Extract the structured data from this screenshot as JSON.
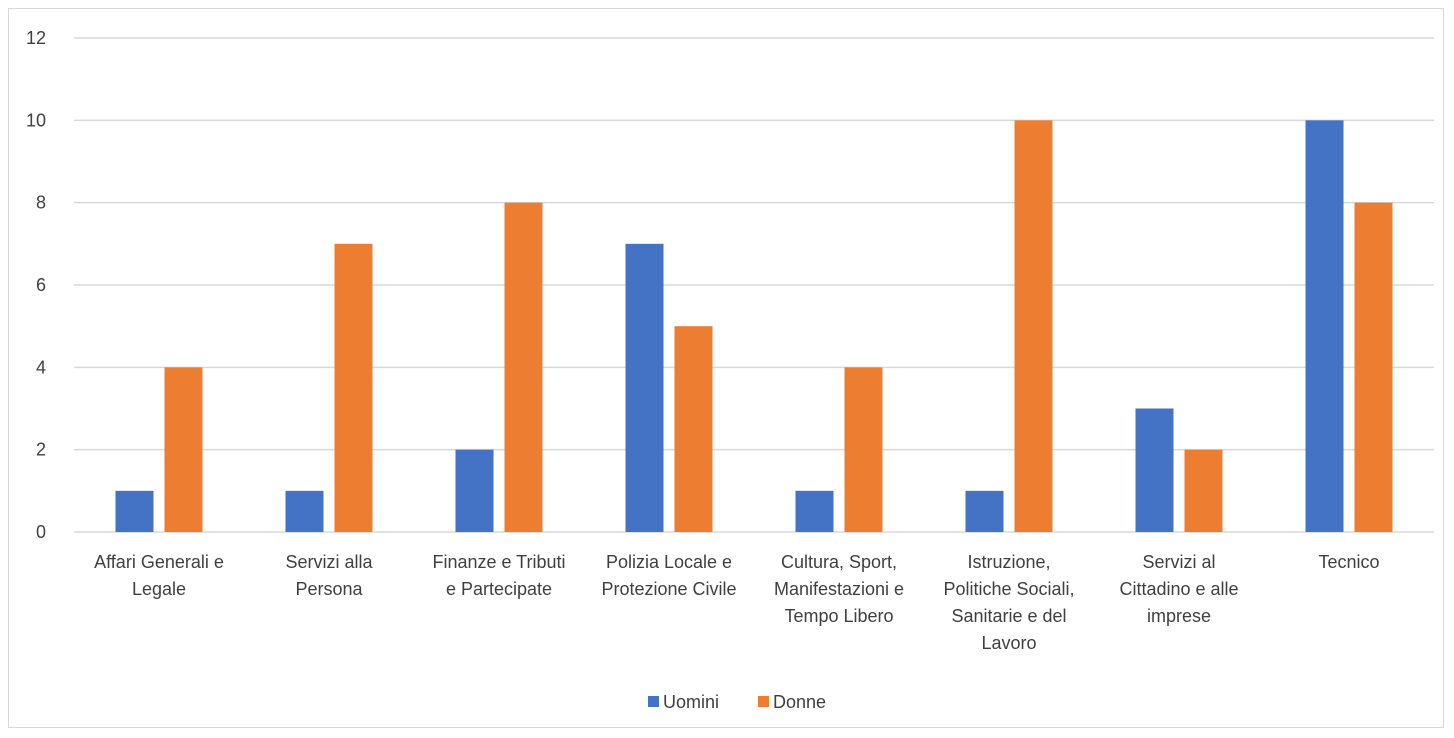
{
  "chart_data": {
    "type": "bar",
    "categories": [
      [
        "Affari Generali e",
        "Legale"
      ],
      [
        "Servizi alla",
        "Persona"
      ],
      [
        "Finanze e Tributi",
        "e Partecipate"
      ],
      [
        "Polizia Locale e",
        "Protezione Civile"
      ],
      [
        "Cultura, Sport,",
        "Manifestazioni e",
        "Tempo Libero"
      ],
      [
        "Istruzione,",
        "Politiche Sociali,",
        "Sanitarie e del",
        "Lavoro"
      ],
      [
        "Servizi al",
        "Cittadino e alle",
        "imprese"
      ],
      [
        "Tecnico"
      ]
    ],
    "series": [
      {
        "name": "Uomini",
        "color": "#4472C4",
        "values": [
          1,
          1,
          2,
          7,
          1,
          1,
          3,
          10
        ]
      },
      {
        "name": "Donne",
        "color": "#ED7D31",
        "values": [
          4,
          7,
          8,
          5,
          4,
          10,
          2,
          8
        ]
      }
    ],
    "ylim": [
      0,
      12
    ],
    "yticks": [
      0,
      2,
      4,
      6,
      8,
      10,
      12
    ],
    "grid": true,
    "legend_position": "bottom",
    "title": "",
    "xlabel": "",
    "ylabel": ""
  }
}
